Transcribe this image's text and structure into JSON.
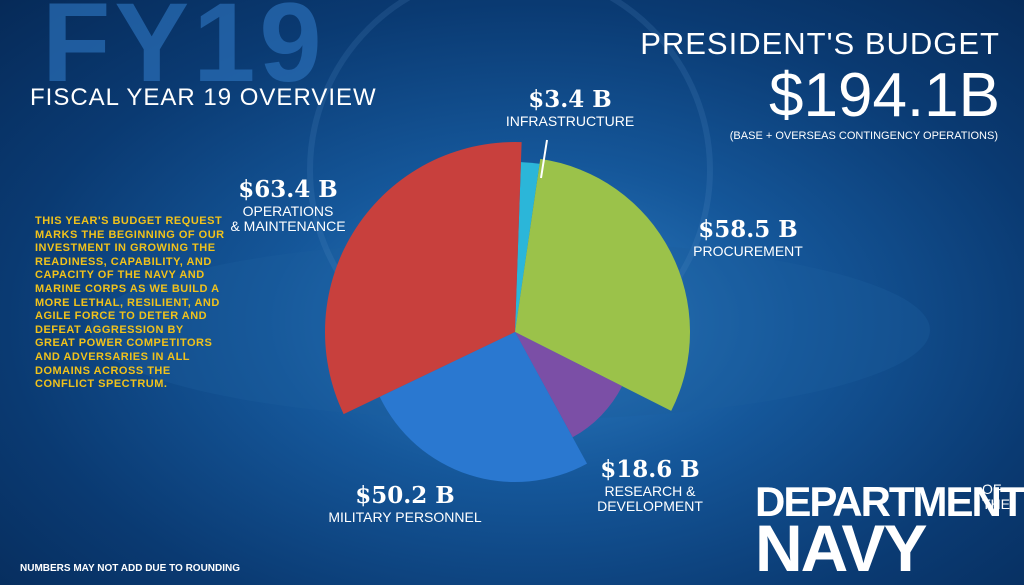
{
  "header": {
    "watermark": "FY19",
    "subtitle": "FISCAL YEAR 19 OVERVIEW",
    "title": "PRESIDENT'S BUDGET",
    "total": "$194.1B",
    "total_note": "(BASE + OVERSEAS CONTINGENCY OPERATIONS)"
  },
  "description": "THIS YEAR'S BUDGET REQUEST MARKS THE BEGINNING OF OUR INVESTMENT IN GROWING THE READINESS, CAPABILITY, AND CAPACITY OF THE NAVY AND MARINE CORPS AS WE BUILD A MORE LETHAL, RESILIENT, AND AGILE FORCE TO DETER AND DEFEAT AGGRESSION BY GREAT POWER COMPETITORS AND ADVERSARIES IN ALL DOMAINS ACROSS THE CONFLICT SPECTRUM.",
  "footnote": "NUMBERS MAY NOT ADD DUE TO ROUNDING",
  "logo": {
    "line1": "DEPARTMENT",
    "line2": "OF THE",
    "line3": "NAVY"
  },
  "chart_data": {
    "type": "pie",
    "categories": [
      "INFRASTRUCTURE",
      "PROCUREMENT",
      "RESEARCH &\nDEVELOPMENT",
      "MILITARY PERSONNEL",
      "OPERATIONS\n& MAINTENANCE"
    ],
    "values": [
      3.4,
      58.5,
      18.6,
      50.2,
      63.4
    ],
    "value_labels": [
      "$3.4 B",
      "$58.5 B",
      "$18.6 B",
      "$50.2 B",
      "$63.4 B"
    ],
    "colors": [
      "#2bb6d9",
      "#9bc24a",
      "#7b4fa6",
      "#2a78d0",
      "#c8403d"
    ]
  }
}
